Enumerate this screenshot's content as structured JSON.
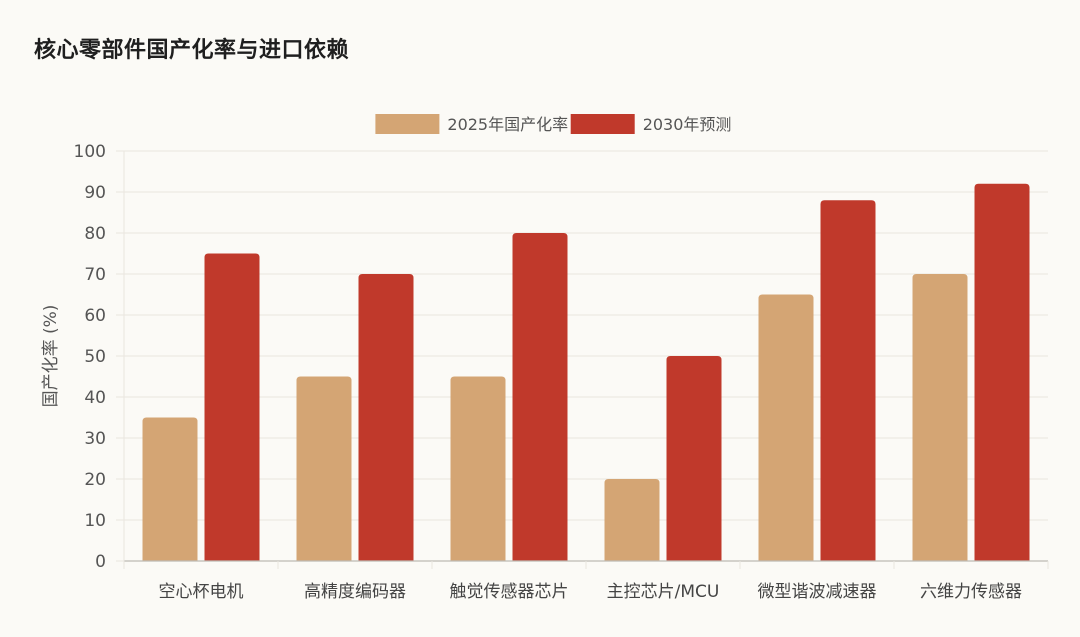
{
  "page": {
    "title": "核心零部件国产化率与进口依赖"
  },
  "colors": {
    "series_2025": "#d4a574",
    "series_2030": "#c0392b",
    "grid": "#e9e6df",
    "axis": "#bdbab3"
  },
  "chart_data": {
    "type": "bar",
    "title": "核心零部件国产化率与进口依赖",
    "ylabel": "国产化率 (%)",
    "xlabel": "",
    "ylim": [
      0,
      100
    ],
    "yticks": [
      0,
      10,
      20,
      30,
      40,
      50,
      60,
      70,
      80,
      90,
      100
    ],
    "grid": true,
    "legend_position": "top-center",
    "categories": [
      "空心杯电机",
      "高精度编码器",
      "触觉传感器芯片",
      "主控芯片/MCU",
      "微型谐波减速器",
      "六维力传感器"
    ],
    "series": [
      {
        "name": "2025年国产化率",
        "color": "#d4a574",
        "values": [
          35,
          45,
          45,
          20,
          65,
          70
        ]
      },
      {
        "name": "2030年预测",
        "color": "#c0392b",
        "values": [
          75,
          70,
          80,
          50,
          88,
          92
        ]
      }
    ]
  }
}
